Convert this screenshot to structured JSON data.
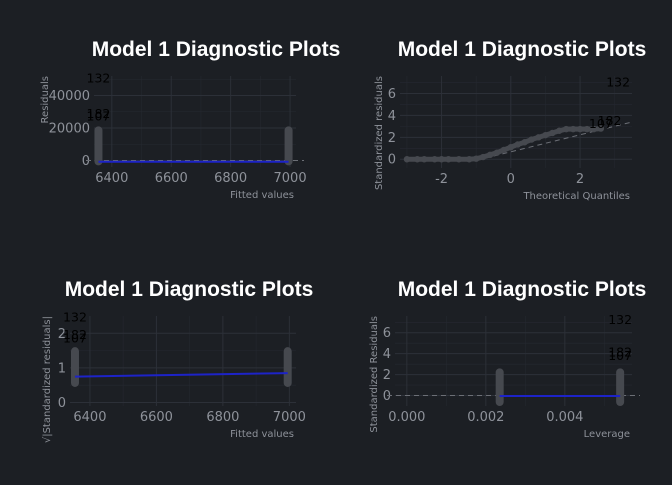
{
  "chart_data": [
    {
      "id": "resid_fitted",
      "type": "scatter",
      "title": "Model 1 Diagnostic Plots",
      "xlabel": "Fitted values",
      "ylabel": "Residuals",
      "xlim": [
        6340,
        7020
      ],
      "ylim": [
        -4000,
        52000
      ],
      "xticks": [
        6400,
        6600,
        6800,
        7000
      ],
      "yticks": [
        0,
        20000,
        40000
      ],
      "ytick_labels": [
        "0",
        "20000",
        "40000"
      ],
      "groups": [
        {
          "x": 6355,
          "y_min": -3000,
          "y_max": 21000
        },
        {
          "x": 6995,
          "y_min": -3000,
          "y_max": 21000
        }
      ],
      "fit_line": {
        "x": [
          6355,
          6995
        ],
        "y": [
          -800,
          -800
        ]
      },
      "reference_line": 0,
      "labels": [
        {
          "text": "132",
          "x": 6355,
          "y": 50500
        },
        {
          "text": "182",
          "x": 6355,
          "y": 28500
        },
        {
          "text": "107",
          "x": 6355,
          "y": 27000
        }
      ],
      "colors": {
        "points": "#46494f",
        "fit": "#1d23c8",
        "reference": "#6c6f76"
      }
    },
    {
      "id": "qq",
      "type": "scatter",
      "title": "Model 1 Diagnostic Plots",
      "xlabel": "Theoretical Quantiles",
      "ylabel": "Standardized residuals",
      "xlim": [
        -3.2,
        3.5
      ],
      "ylim": [
        -0.8,
        7.6
      ],
      "xticks": [
        -2,
        0,
        2
      ],
      "yticks": [
        0,
        2,
        4,
        6
      ],
      "points": [
        {
          "x": -3.0,
          "y": 0.0
        },
        {
          "x": -2.7,
          "y": 0.0
        },
        {
          "x": -2.5,
          "y": 0.0
        },
        {
          "x": -2.2,
          "y": 0.0
        },
        {
          "x": -2.0,
          "y": 0.0
        },
        {
          "x": -1.8,
          "y": 0.0
        },
        {
          "x": -1.5,
          "y": 0.0
        },
        {
          "x": -1.2,
          "y": 0.0
        },
        {
          "x": -1.0,
          "y": 0.05
        },
        {
          "x": -0.8,
          "y": 0.2
        },
        {
          "x": -0.6,
          "y": 0.4
        },
        {
          "x": -0.4,
          "y": 0.6
        },
        {
          "x": -0.2,
          "y": 0.85
        },
        {
          "x": 0.0,
          "y": 1.1
        },
        {
          "x": 0.2,
          "y": 1.35
        },
        {
          "x": 0.4,
          "y": 1.55
        },
        {
          "x": 0.6,
          "y": 1.8
        },
        {
          "x": 0.8,
          "y": 2.0
        },
        {
          "x": 1.0,
          "y": 2.2
        },
        {
          "x": 1.2,
          "y": 2.4
        },
        {
          "x": 1.4,
          "y": 2.6
        },
        {
          "x": 1.6,
          "y": 2.75
        },
        {
          "x": 1.8,
          "y": 2.75
        },
        {
          "x": 2.0,
          "y": 2.75
        },
        {
          "x": 2.2,
          "y": 2.75
        },
        {
          "x": 2.4,
          "y": 2.75
        },
        {
          "x": 2.6,
          "y": 2.8
        }
      ],
      "reference_line": {
        "x": [
          -1.0,
          3.5
        ],
        "y": [
          -0.1,
          3.4
        ]
      },
      "labels": [
        {
          "text": "132",
          "x": 3.1,
          "y": 7.0
        },
        {
          "text": "182",
          "x": 2.85,
          "y": 3.5
        },
        {
          "text": "107",
          "x": 2.6,
          "y": 3.2
        }
      ],
      "colors": {
        "points": "#46494f",
        "reference": "#6c6f76"
      }
    },
    {
      "id": "scale_location",
      "type": "scatter",
      "title": "Model 1 Diagnostic Plots",
      "xlabel": "Fitted values",
      "ylabel": "√|Standardized residuals|",
      "xlim": [
        6340,
        7020
      ],
      "ylim": [
        -0.1,
        2.5
      ],
      "xticks": [
        6400,
        6600,
        6800,
        7000
      ],
      "yticks": [
        0,
        1,
        2
      ],
      "groups": [
        {
          "x": 6355,
          "y_min": 0.45,
          "y_max": 1.6
        },
        {
          "x": 6995,
          "y_min": 0.45,
          "y_max": 1.6
        }
      ],
      "fit_line": {
        "x": [
          6355,
          6995
        ],
        "y": [
          0.75,
          0.85
        ]
      },
      "labels": [
        {
          "text": "132",
          "x": 6355,
          "y": 2.45
        },
        {
          "text": "182",
          "x": 6355,
          "y": 1.95
        },
        {
          "text": "107",
          "x": 6355,
          "y": 1.85
        }
      ],
      "colors": {
        "points": "#46494f",
        "fit": "#1d23c8"
      }
    },
    {
      "id": "resid_leverage",
      "type": "scatter",
      "title": "Model 1 Diagnostic Plots",
      "xlabel": "Leverage",
      "ylabel": "Standardized Residuals",
      "xlim": [
        -0.0003,
        0.0057
      ],
      "ylim": [
        -1.0,
        7.6
      ],
      "xticks": [
        0.0,
        0.002,
        0.004
      ],
      "xtick_labels": [
        "0.000",
        "0.002",
        "0.004"
      ],
      "yticks": [
        0,
        2,
        4,
        6
      ],
      "groups": [
        {
          "x": 0.00235,
          "y_min": -1.0,
          "y_max": 2.6
        },
        {
          "x": 0.0054,
          "y_min": -1.0,
          "y_max": 2.6
        }
      ],
      "fit_line": {
        "x": [
          0.00235,
          0.0054
        ],
        "y": [
          -0.05,
          -0.05
        ]
      },
      "reference_line": 0,
      "labels": [
        {
          "text": "132",
          "x": 0.0054,
          "y": 7.2
        },
        {
          "text": "182",
          "x": 0.0054,
          "y": 4.1
        },
        {
          "text": "107",
          "x": 0.0054,
          "y": 3.8
        }
      ],
      "colors": {
        "points": "#46494f",
        "fit": "#1d23c8",
        "reference": "#6c6f76"
      }
    }
  ]
}
